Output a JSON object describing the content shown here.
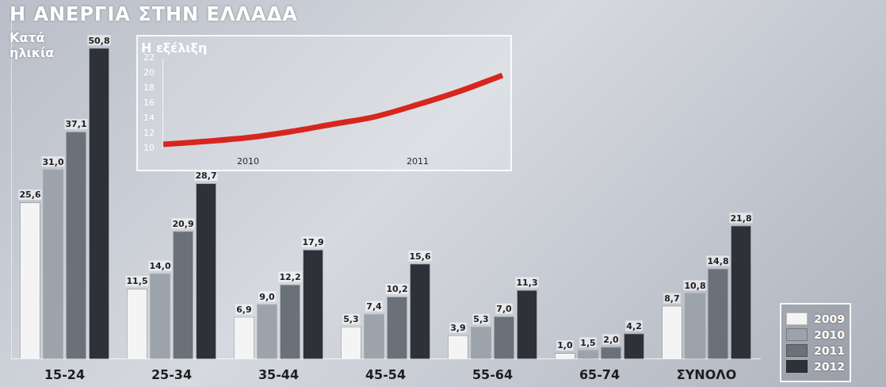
{
  "chart_data": [
    {
      "type": "bar",
      "title": "Η ΑΝΕΡΓΙΑ ΣΤΗΝ ΕΛΛΑΔΑ",
      "subtitle": "Κατά ηλικία",
      "categories": [
        "15-24",
        "25-34",
        "35-44",
        "45-54",
        "55-64",
        "65-74",
        "ΣΥΝΟΛΟ"
      ],
      "series": [
        {
          "name": "2009",
          "color": "#f4f4f4",
          "values": [
            25.6,
            11.5,
            6.9,
            5.3,
            3.9,
            1.0,
            8.7
          ],
          "value_labels": [
            "25,6",
            "11,5",
            "6,9",
            "5,3",
            "3,9",
            "1,0",
            "8,7"
          ]
        },
        {
          "name": "2010",
          "color": "#9da3aa",
          "values": [
            31.0,
            14.0,
            9.0,
            7.4,
            5.3,
            1.5,
            10.8
          ],
          "value_labels": [
            "31,0",
            "14,0",
            "9,0",
            "7,4",
            "5,3",
            "1,5",
            "10,8"
          ]
        },
        {
          "name": "2011",
          "color": "#6b7178",
          "values": [
            37.1,
            20.9,
            12.2,
            10.2,
            7.0,
            2.0,
            14.8
          ],
          "value_labels": [
            "37,1",
            "20,9",
            "12,2",
            "10,2",
            "7,0",
            "2,0",
            "14,8"
          ]
        },
        {
          "name": "2012",
          "color": "#2e3238",
          "values": [
            50.8,
            28.7,
            17.9,
            15.6,
            11.3,
            4.2,
            21.8
          ],
          "value_labels": [
            "50,8",
            "28,7",
            "17,9",
            "15,6",
            "11,3",
            "4,2",
            "21,8"
          ]
        }
      ],
      "ylim": [
        0,
        56
      ],
      "grid": false,
      "tick_labels": "x",
      "data_labels": true,
      "legend": "bottom right"
    },
    {
      "type": "line",
      "title": "Η εξέλιξη",
      "categories": [
        null,
        null,
        "2010",
        null,
        null,
        null,
        "2011",
        null,
        null
      ],
      "values": [
        10.5,
        10.9,
        11.4,
        12.2,
        13.2,
        14.2,
        15.8,
        17.6,
        19.7
      ],
      "color": "#d7261e",
      "ylim": [
        10,
        22
      ],
      "yticks": [
        10,
        12,
        14,
        16,
        18,
        20,
        22
      ],
      "grid": false
    }
  ]
}
